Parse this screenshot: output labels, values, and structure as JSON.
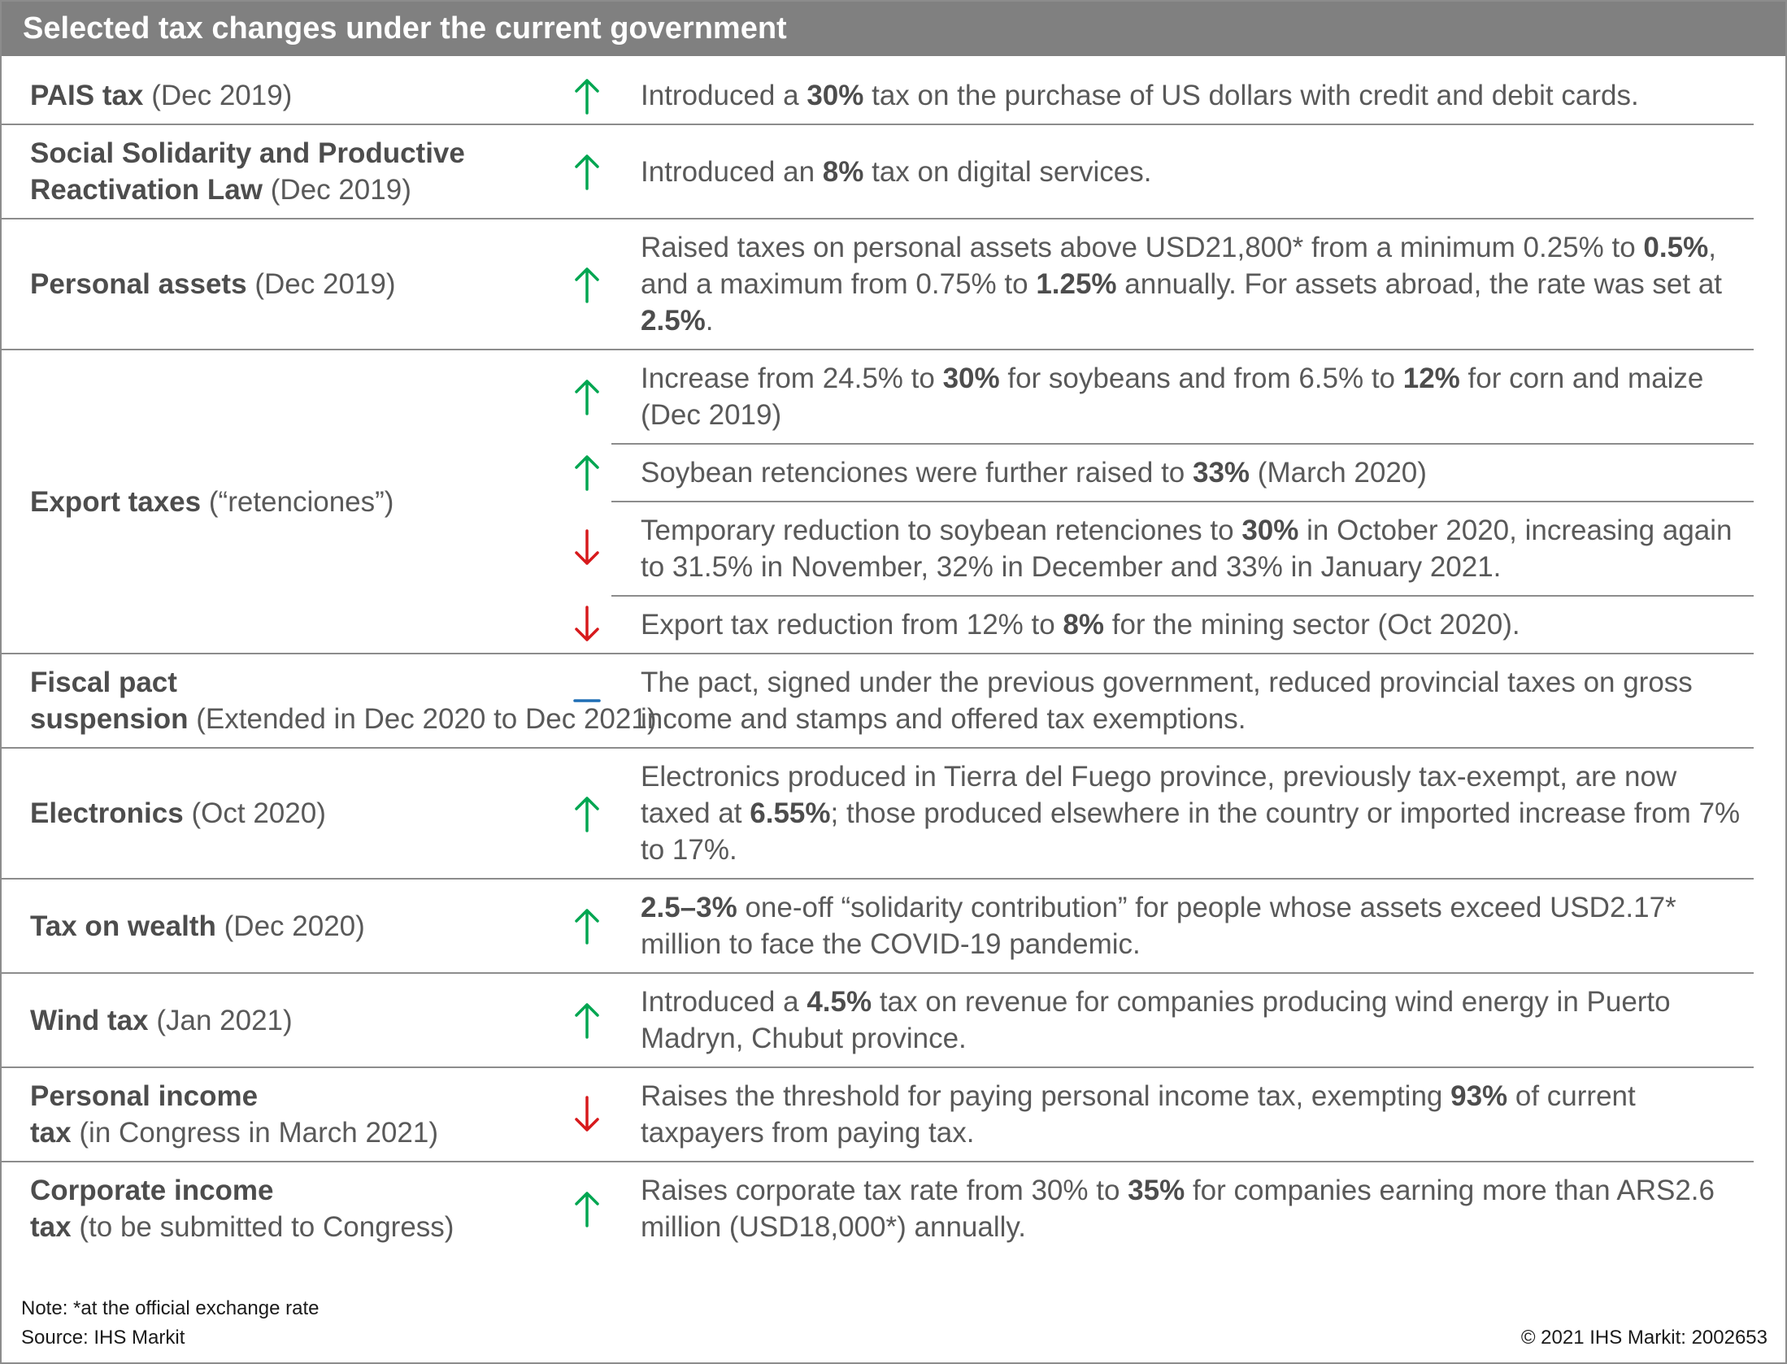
{
  "header": {
    "title": "Selected tax changes under the current government"
  },
  "rows": [
    {
      "name": "PAIS tax",
      "qualifier": "(Dec 2019)",
      "changes": [
        {
          "direction": "up",
          "text": [
            {
              "text": "Introduced a "
            },
            {
              "text": "30%",
              "bold": true
            },
            {
              "text": " tax on the purchase of US dollars with credit and debit cards."
            }
          ]
        }
      ]
    },
    {
      "name": "Social Solidarity and Productive Reactivation Law",
      "qualifier": "(Dec 2019)",
      "changes": [
        {
          "direction": "up",
          "text": [
            {
              "text": "Introduced an "
            },
            {
              "text": "8%",
              "bold": true
            },
            {
              "text": " tax on digital services."
            }
          ]
        }
      ]
    },
    {
      "name": "Personal assets",
      "qualifier": "(Dec 2019)",
      "changes": [
        {
          "direction": "up",
          "text": [
            {
              "text": "Raised taxes on personal assets above USD21,800* from a minimum 0.25% to "
            },
            {
              "text": "0.5%",
              "bold": true
            },
            {
              "text": ", and a maximum from 0.75% to "
            },
            {
              "text": "1.25%",
              "bold": true
            },
            {
              "text": " annually. For assets abroad, the rate was set at "
            },
            {
              "text": "2.5%",
              "bold": true
            },
            {
              "text": "."
            }
          ]
        }
      ]
    },
    {
      "name": "Export taxes",
      "qualifier": "(“retenciones”)",
      "changes": [
        {
          "direction": "up",
          "text": [
            {
              "text": "Increase from 24.5% to "
            },
            {
              "text": "30%",
              "bold": true
            },
            {
              "text": " for soybeans and from 6.5% to "
            },
            {
              "text": "12%",
              "bold": true
            },
            {
              "text": " for corn and maize (Dec 2019)"
            }
          ]
        },
        {
          "direction": "up",
          "text": [
            {
              "text": "Soybean retenciones were further raised to "
            },
            {
              "text": "33%",
              "bold": true
            },
            {
              "text": " (March 2020)"
            }
          ]
        },
        {
          "direction": "down",
          "text": [
            {
              "text": "Temporary reduction to soybean retenciones to "
            },
            {
              "text": "30%",
              "bold": true
            },
            {
              "text": " in October 2020, increasing again to 31.5% in November, 32% in December and 33% in January 2021."
            }
          ]
        },
        {
          "direction": "down",
          "text": [
            {
              "text": "Export tax reduction from 12% to "
            },
            {
              "text": "8%",
              "bold": true
            },
            {
              "text": " for the mining sector (Oct 2020)."
            }
          ]
        }
      ]
    },
    {
      "name": "Fiscal pact suspension",
      "qualifier": "(Extended in Dec 2020 to Dec 2021)",
      "changes": [
        {
          "direction": "flat",
          "text": [
            {
              "text": "The pact, signed under the previous government, reduced provincial taxes on gross income and stamps and offered tax exemptions."
            }
          ]
        }
      ]
    },
    {
      "name": "Electronics",
      "qualifier": "(Oct 2020)",
      "changes": [
        {
          "direction": "up",
          "text": [
            {
              "text": "Electronics produced in Tierra del Fuego province, previously tax-exempt, are now taxed at "
            },
            {
              "text": "6.55%",
              "bold": true
            },
            {
              "text": "; those produced elsewhere in the country or imported increase from 7% to 17%."
            }
          ]
        }
      ]
    },
    {
      "name": "Tax on wealth",
      "qualifier": "(Dec 2020)",
      "changes": [
        {
          "direction": "up",
          "text": [
            {
              "text": "2.5–3%",
              "bold": true
            },
            {
              "text": " one-off “solidarity contribution” for people whose assets exceed USD2.17* million to face the COVID-19 pandemic."
            }
          ]
        }
      ]
    },
    {
      "name": "Wind tax",
      "qualifier": "(Jan 2021)",
      "changes": [
        {
          "direction": "up",
          "text": [
            {
              "text": "Introduced a "
            },
            {
              "text": "4.5%",
              "bold": true
            },
            {
              "text": " tax on revenue for companies producing wind energy in Puerto Madryn, Chubut province."
            }
          ]
        }
      ]
    },
    {
      "name": "Personal income tax",
      "qualifier": "(in Congress in March 2021)",
      "changes": [
        {
          "direction": "down",
          "text": [
            {
              "text": "Raises the threshold for paying personal income tax, exempting "
            },
            {
              "text": "93%",
              "bold": true
            },
            {
              "text": " of current taxpayers from paying tax."
            }
          ]
        }
      ]
    },
    {
      "name": "Corporate income tax",
      "qualifier": "(to be submitted to Congress)",
      "changes": [
        {
          "direction": "up",
          "text": [
            {
              "text": "Raises corporate tax rate from 30% to "
            },
            {
              "text": "35%",
              "bold": true
            },
            {
              "text": " for companies earning more than ARS2.6 million (USD18,000*) annually."
            }
          ]
        }
      ]
    }
  ],
  "note": "Note: *at the official exchange rate",
  "source": "Source: IHS Markit",
  "copyright": "© 2021 IHS Markit: 2002653"
}
